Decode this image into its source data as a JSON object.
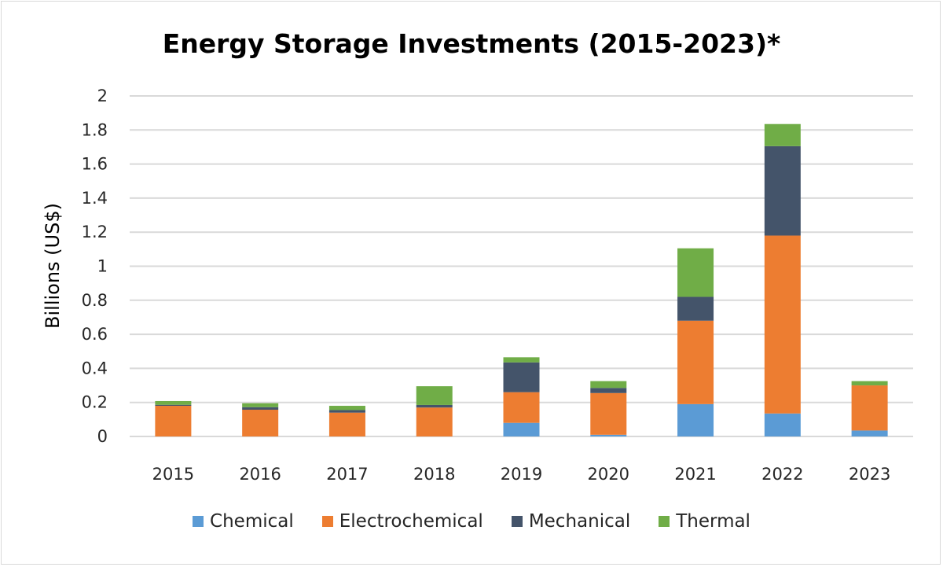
{
  "chart_data": {
    "type": "bar",
    "stacked": true,
    "title": "Energy Storage Investments (2015-2023)*",
    "xlabel": "",
    "ylabel": "Billions (US$)",
    "ylim": [
      0,
      2
    ],
    "yticks": [
      "0",
      "0.2",
      "0.4",
      "0.6",
      "0.8",
      "1",
      "1.2",
      "1.4",
      "1.6",
      "1.8",
      "2"
    ],
    "grid": true,
    "legend_position": "bottom",
    "categories": [
      "2015",
      "2016",
      "2017",
      "2018",
      "2019",
      "2020",
      "2021",
      "2022",
      "2023"
    ],
    "series": [
      {
        "name": "Chemical",
        "color": "#5b9bd5",
        "values": [
          0,
          0,
          0,
          0,
          0.08,
          0.01,
          0.19,
          0.135,
          0.035
        ]
      },
      {
        "name": "Electrochemical",
        "color": "#ed7d31",
        "values": [
          0.18,
          0.157,
          0.14,
          0.17,
          0.18,
          0.245,
          0.49,
          1.045,
          0.265
        ]
      },
      {
        "name": "Mechanical",
        "color": "#44546a",
        "values": [
          0.006,
          0.015,
          0.015,
          0.015,
          0.175,
          0.03,
          0.14,
          0.525,
          0
        ]
      },
      {
        "name": "Thermal",
        "color": "#70ad47",
        "values": [
          0.022,
          0.023,
          0.025,
          0.11,
          0.03,
          0.04,
          0.285,
          0.13,
          0.025
        ]
      }
    ]
  }
}
